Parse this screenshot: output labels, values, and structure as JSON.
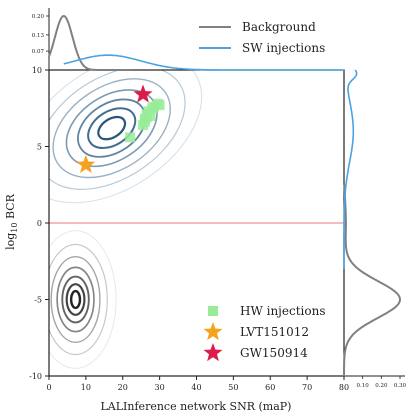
{
  "chart_data": {
    "type": "scatter",
    "xlabel": "LALInference network SNR (maP)",
    "ylabel": "log10 BCR",
    "ylabel_main": "log",
    "ylabel_sub": "10",
    "ylabel_rest": " BCR",
    "xlim": [
      0,
      80
    ],
    "ylim": [
      -10,
      10
    ],
    "x_ticks": [
      0,
      10,
      20,
      30,
      40,
      50,
      60,
      70,
      80
    ],
    "y_ticks": [
      -10,
      -5,
      0,
      5,
      10
    ],
    "threshold_line": {
      "y": 0,
      "color": "#f4a3ad"
    },
    "grid": false,
    "colors": {
      "background": "#808080",
      "injections": "#4aa3e0",
      "hw": "#98ec98",
      "lvt": "#f5a31e",
      "gw": "#dc1c48"
    },
    "top_marginal": {
      "ticks": [
        0.07,
        0.13,
        0.2
      ],
      "tick_labels": [
        "0.07",
        "0.13",
        "0.20"
      ]
    },
    "right_marginal": {
      "ticks": [
        0.1,
        0.2,
        0.3
      ],
      "tick_labels": [
        "0.10",
        "0.20",
        "0.30"
      ]
    },
    "marginal_legend": {
      "position": "top-right",
      "items": [
        {
          "label": "Background",
          "color": "#808080"
        },
        {
          "label": "SW injections",
          "color": "#4aa3e0"
        }
      ]
    },
    "point_legend": {
      "position": "lower-right",
      "items": [
        {
          "label": "HW injections",
          "marker": "square",
          "color": "#98ec98"
        },
        {
          "label": "LVT151012",
          "marker": "star",
          "color": "#f5a31e"
        },
        {
          "label": "GW150914",
          "marker": "star",
          "color": "#dc1c48"
        }
      ]
    },
    "series": [
      {
        "name": "HW injections",
        "points": [
          [
            22,
            5.6
          ],
          [
            25.5,
            6.4
          ],
          [
            26,
            6.8
          ],
          [
            26.5,
            7.1
          ],
          [
            27,
            7.3
          ],
          [
            27.5,
            7.0
          ],
          [
            28,
            7.5
          ],
          [
            28.5,
            7.6
          ],
          [
            29.5,
            7.8
          ],
          [
            30,
            7.7
          ],
          [
            26,
            6.6
          ],
          [
            26.5,
            6.9
          ]
        ]
      },
      {
        "name": "LVT151012",
        "points": [
          [
            10,
            3.8
          ]
        ]
      },
      {
        "name": "GW150914",
        "points": [
          [
            25.5,
            8.4
          ]
        ]
      }
    ],
    "density_contours": [
      {
        "name": "SW injections",
        "center": [
          17,
          6.2
        ],
        "angle_deg": 33,
        "rx": [
          4,
          7,
          10,
          13.5,
          17.5,
          22,
          27
        ],
        "ry": [
          0.6,
          1.1,
          1.6,
          2.1,
          2.7,
          3.3,
          4.0
        ]
      },
      {
        "name": "Background",
        "center": [
          7.2,
          -5.0
        ],
        "angle_deg": 0,
        "rx": [
          1.2,
          2.4,
          3.6,
          5.0,
          6.6,
          8.6,
          11.0
        ],
        "ry": [
          0.55,
          1.0,
          1.5,
          2.1,
          2.8,
          3.6,
          4.5
        ]
      }
    ]
  }
}
